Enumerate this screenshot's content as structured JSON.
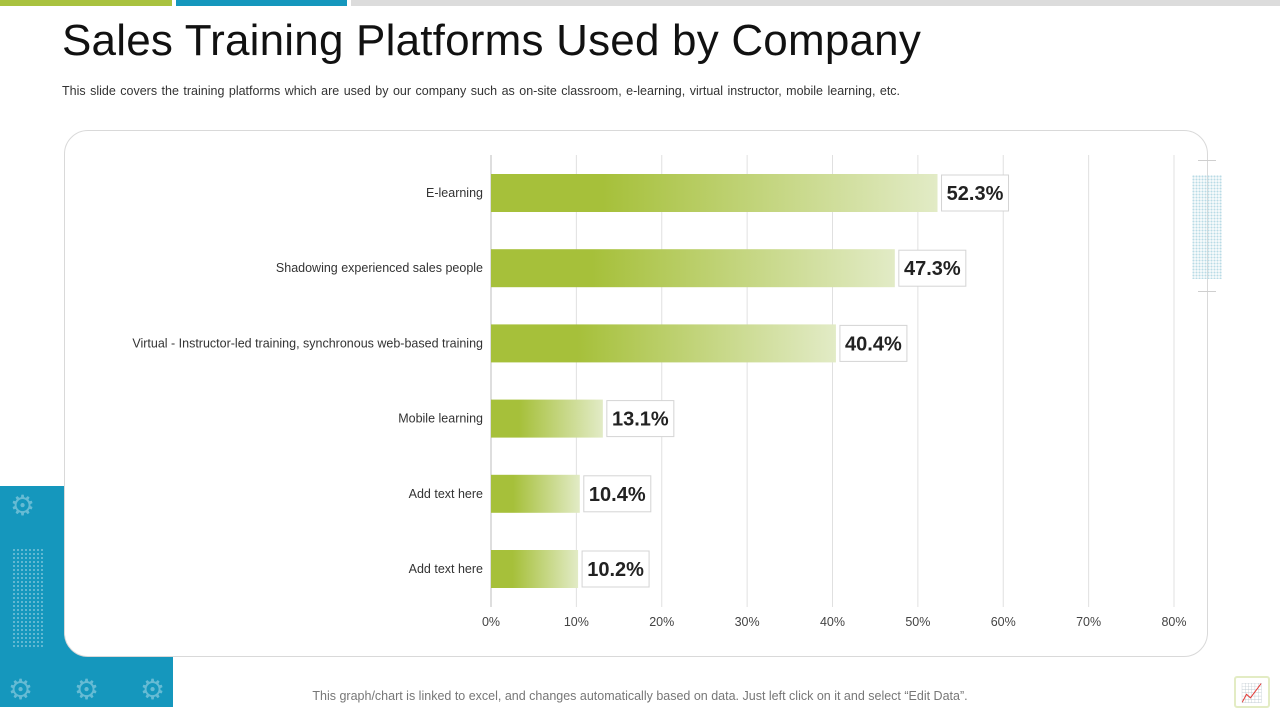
{
  "title": "Sales Training Platforms Used by Company",
  "subtitle": "This slide covers the training platforms which are used by our company such as on-site classroom, e-learning, virtual instructor, mobile learning, etc.",
  "footer": "This graph/chart is linked to excel, and changes automatically based on data. Just left click on it and select “Edit Data”.",
  "colors": {
    "accent_green": "#a9c23f",
    "accent_blue": "#1597bd",
    "bar_start": "#a6c03a",
    "bar_end": "#e2ebc6"
  },
  "icons": {
    "decor_gear": "gear-icon",
    "corner": "chart-icon"
  },
  "chart_data": {
    "type": "bar",
    "orientation": "horizontal",
    "categories": [
      "E-learning",
      "Shadowing experienced sales people",
      "Virtual - Instructor-led training, synchronous web-based training",
      "Mobile learning",
      "Add text here",
      "Add text here"
    ],
    "values": [
      52.3,
      47.3,
      40.4,
      13.1,
      10.4,
      10.2
    ],
    "data_labels": [
      "52.3%",
      "47.3%",
      "40.4%",
      "13.1%",
      "10.4%",
      "10.2%"
    ],
    "xlim": [
      0,
      80
    ],
    "xticks": [
      0,
      10,
      20,
      30,
      40,
      50,
      60,
      70,
      80
    ],
    "xtick_labels": [
      "0%",
      "10%",
      "20%",
      "30%",
      "40%",
      "50%",
      "60%",
      "70%",
      "80%"
    ],
    "grid": true,
    "legend": "none"
  }
}
